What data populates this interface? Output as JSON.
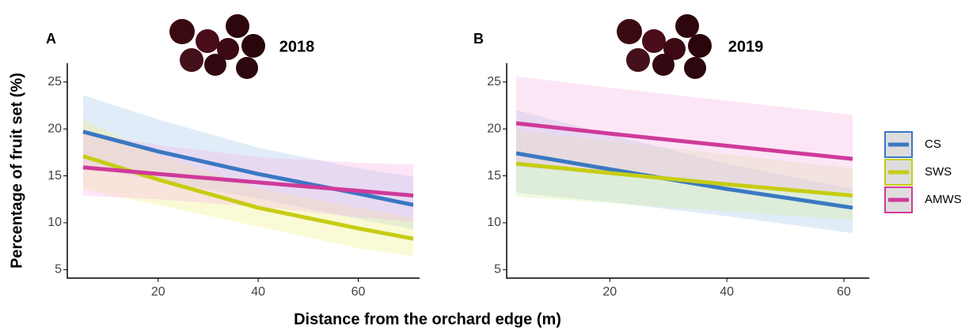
{
  "xlabel": "Distance from the orchard edge (m)",
  "ylabel": "Percentage of fruit set (%)",
  "chart_data": [
    {
      "type": "line",
      "panel": "A",
      "title": "2018",
      "x": [
        5,
        20,
        40,
        60,
        71
      ],
      "xlim": [
        5,
        71
      ],
      "ylim": [
        4.1,
        27
      ],
      "xticks": [
        20,
        40,
        60
      ],
      "yticks": [
        5,
        10,
        15,
        20,
        25
      ],
      "series": [
        {
          "color": "#3a78c2",
          "band_color": "#a8c8ee",
          "values": [
            19.7,
            17.6,
            15.2,
            13.1,
            11.9
          ],
          "upper": [
            23.6,
            21.0,
            18.0,
            15.8,
            14.9
          ],
          "lower": [
            16.0,
            14.5,
            12.6,
            10.4,
            9.3
          ]
        },
        {
          "color": "#c7cc12",
          "band_color": "#f0f08a",
          "values": [
            17.1,
            14.6,
            11.6,
            9.4,
            8.3
          ],
          "upper": [
            21.0,
            17.2,
            13.7,
            11.6,
            10.5
          ],
          "lower": [
            13.6,
            11.9,
            9.6,
            7.3,
            6.4
          ]
        },
        {
          "color": "#cf3a9a",
          "band_color": "#f5b8e6",
          "values": [
            15.9,
            15.2,
            14.3,
            13.4,
            12.9
          ],
          "upper": [
            19.6,
            18.3,
            17.0,
            16.4,
            16.2
          ],
          "lower": [
            12.9,
            12.5,
            11.7,
            10.6,
            10.1
          ]
        }
      ]
    },
    {
      "type": "line",
      "panel": "B",
      "title": "2019",
      "x": [
        4,
        20,
        40,
        61.5
      ],
      "xlim": [
        4,
        61.5
      ],
      "ylim": [
        4.1,
        27
      ],
      "xticks": [
        20,
        40,
        60
      ],
      "yticks": [
        5,
        10,
        15,
        20,
        25
      ],
      "series": [
        {
          "name": "CS",
          "color": "#3a78c2",
          "band_color": "#a8c8ee",
          "values": [
            17.4,
            15.7,
            13.6,
            11.6
          ],
          "upper": [
            22.0,
            19.4,
            16.3,
            13.6
          ],
          "lower": [
            13.2,
            12.2,
            10.7,
            8.9
          ]
        },
        {
          "name": "SWS",
          "color": "#c7cc12",
          "band_color": "#d8f0a0",
          "values": [
            16.3,
            15.3,
            14.1,
            12.9
          ],
          "upper": [
            19.8,
            18.7,
            17.3,
            15.8
          ],
          "lower": [
            12.8,
            12.1,
            11.2,
            10.3
          ]
        },
        {
          "name": "AMWS",
          "color": "#cf3a9a",
          "band_color": "#f5b8e6",
          "values": [
            20.6,
            19.5,
            18.2,
            16.8
          ],
          "upper": [
            25.6,
            24.4,
            23.0,
            21.5
          ],
          "lower": [
            16.0,
            15.2,
            14.2,
            13.2
          ]
        }
      ]
    }
  ]
}
